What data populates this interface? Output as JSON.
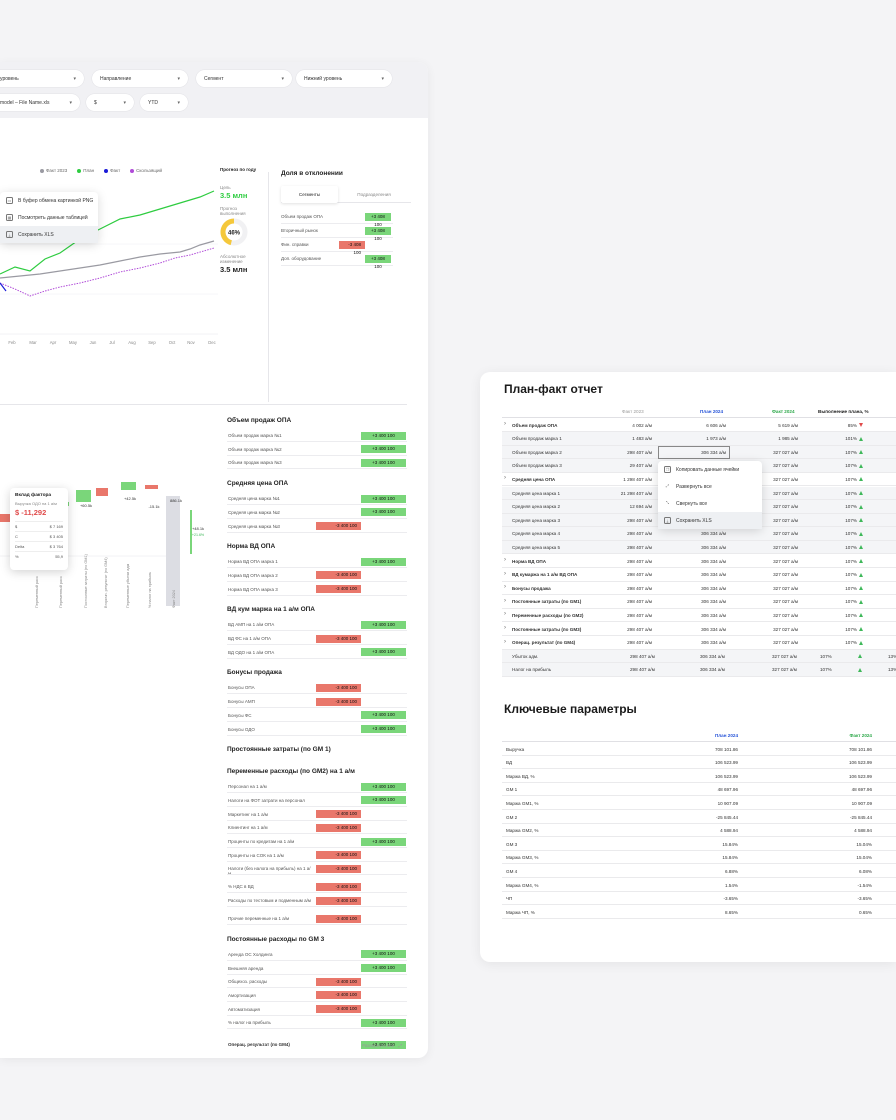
{
  "filters": {
    "row1": [
      "уровень",
      "Направление",
      "Сегмент",
      "Нижний уровень"
    ],
    "row2": [
      "model – File Name.xls",
      "$",
      "YTD"
    ]
  },
  "colors": {
    "green": "#2ecc40",
    "gray": "#9a9aa2",
    "blue": "#1a1ad8",
    "purple": "#b04bd8",
    "pos": "#7ad67a",
    "neg": "#e9776b"
  },
  "legend": [
    "Факт 2023",
    "План",
    "Факт",
    "Скользящий"
  ],
  "context_menu_chart": [
    "В буфер обмена картинкой PNG",
    "Посмотреть данные таблицей",
    "Сохранить XLS"
  ],
  "line_chart": {
    "months": [
      "Feb",
      "Mar",
      "Apr",
      "May",
      "Jun",
      "Jul",
      "Aug",
      "Sep",
      "Oct",
      "Nov",
      "Dec"
    ]
  },
  "forecast": {
    "title": "Прогноз по году",
    "goal_label": "Цель",
    "goal_value": "3.5 млн",
    "forecast_label_1": "Прогноз",
    "forecast_label_2": "выполнения",
    "percent": "46%",
    "percent_value": 46,
    "abs_label_1": "Абсолютное",
    "abs_label_2": "изменение",
    "abs_value": "3.5 млн"
  },
  "deviation": {
    "title": "Доля в отклонении",
    "tabs": [
      "Сегменты",
      "Подразделения"
    ],
    "rows": [
      {
        "label": "Объем продаж ОПА",
        "value": "+3 408 100",
        "sign": "pos"
      },
      {
        "label": "Вторичный рынок",
        "value": "+3 408 100",
        "sign": "pos"
      },
      {
        "label": "Фин. справки",
        "value": "-3 408 100",
        "sign": "neg"
      },
      {
        "label": "Доп. оборудование",
        "value": "+3 408 100",
        "sign": "pos"
      }
    ]
  },
  "waterfall": {
    "values": [
      "-30.0",
      "+41.7k",
      "+4.5k",
      "+60.5k",
      "+42.5k",
      "-15.1k",
      "886.1k",
      "+48.1k"
    ],
    "small_labels": [
      "+21.6%"
    ],
    "tooltip": {
      "title": "Вклад фактора",
      "subtitle": "Выручка ОДО на 1 а/м",
      "value": "$ -11,292",
      "rows": [
        [
          "$",
          "$ 7 169"
        ],
        [
          "С",
          "$ 3 405"
        ],
        [
          "Delta",
          "$ 3 764"
        ],
        [
          "%",
          "55,9"
        ]
      ]
    },
    "x_labels": [
      "Переменный расх",
      "Переменный расх",
      "Постоянные затраты (по GM1)",
      "Вторичн. результат (по GM4)",
      "Переменные убытки адм",
      "% налог на прибыль",
      "Факт 2024"
    ]
  },
  "factors": {
    "sections": [
      {
        "title": "Объем продаж ОПА",
        "rows": [
          [
            "Объем продаж марка №1",
            "+3 400 100",
            "pos"
          ],
          [
            "Объем продаж марка №2",
            "+3 400 100",
            "pos"
          ],
          [
            "Объем продаж марка №3",
            "+3 400 100",
            "pos"
          ]
        ]
      },
      {
        "title": "Средняя цена ОПА",
        "rows": [
          [
            "Средняя цена марка №1",
            "+3 400 100",
            "pos"
          ],
          [
            "Средняя цена марка №2",
            "+3 400 100",
            "pos"
          ],
          [
            "Средняя цена марка №3",
            "-3 400 100",
            "neg"
          ]
        ]
      },
      {
        "title": "Норма ВД ОПА",
        "rows": [
          [
            "Норма ВД ОПА марка 1",
            "+3 400 100",
            "pos"
          ],
          [
            "Норма ВД ОПА марка 2",
            "-3 400 100",
            "neg"
          ],
          [
            "Норма ВД ОПА марка 3",
            "-3 400 100",
            "neg"
          ]
        ]
      },
      {
        "title": "ВД кум маржа на 1 а/м ОПА",
        "rows": [
          [
            "ВД АМП на 1 а/м ОПА",
            "+3 400 100",
            "pos"
          ],
          [
            "ВД ФС на 1 а/м ОПА",
            "-3 400 100",
            "neg"
          ],
          [
            "ВД ОДО на 1 а/м ОПА",
            "+3 400 100",
            "pos"
          ]
        ]
      },
      {
        "title": "Бонусы продажа",
        "rows": [
          [
            "Бонусы ОПА",
            "-3 400 100",
            "neg"
          ],
          [
            "Бонусы АМП",
            "-3 400 100",
            "neg"
          ],
          [
            "Бонусы ФС",
            "+3 400 100",
            "pos"
          ],
          [
            "Бонусы ОДО",
            "+3 400 100",
            "pos"
          ]
        ]
      },
      {
        "title": "Простоянные затраты (по GM 1)",
        "rows": []
      },
      {
        "title": "Переменные расходы (по GM2) на 1 а/м",
        "rows": [
          [
            "Персонал на 1 а/м",
            "+3 400 100",
            "pos"
          ],
          [
            "Налоги на ФОТ затрати на персонал",
            "+3 400 100",
            "pos"
          ],
          [
            "Маркетинг на 1 а/м",
            "-3 400 100",
            "neg"
          ],
          [
            "Клиентинг на 1 а/м",
            "-3 400 100",
            "neg"
          ],
          [
            "Проценты по кредитам на 1 а/м",
            "+3 400 100",
            "pos"
          ],
          [
            "Проценты на СОК на 1 а/м",
            "-3 400 100",
            "neg"
          ],
          [
            "Налоги (без налога на прибыль) на 1 а/м",
            "-3 400 100",
            "neg"
          ],
          [
            "% НДС в ВД",
            "-3 400 100",
            "neg"
          ],
          [
            "Расходы по тестовым и подменным а/м",
            "-3 400 100",
            "neg"
          ],
          [
            "Прочие переменные на 1 а/м",
            "-3 400 100",
            "neg"
          ]
        ]
      },
      {
        "title": "Постоянные расходы по GM 3",
        "rows": [
          [
            "Аренда ОС Холдинга",
            "+3 400 100",
            "pos"
          ],
          [
            "Внешняя аренда",
            "+3 400 100",
            "pos"
          ],
          [
            "Общехоз. расходы",
            "-3 400 100",
            "neg"
          ],
          [
            "Амортизация",
            "-3 400 100",
            "neg"
          ],
          [
            "Автоматизация",
            "-3 400 100",
            "neg"
          ],
          [
            "% налог на прибыль",
            "+3 400 100",
            "pos"
          ]
        ]
      }
    ],
    "bottom_rows": [
      [
        "Операц. результат (по GM4)",
        "+3 400 100",
        "pos"
      ],
      [
        "Убыток адм.",
        "+3 400 100",
        "pos"
      ],
      [
        "Налог на прибыль",
        "-3 400 100",
        "neg"
      ]
    ],
    "expand_all": "Развернуть все"
  },
  "plan_fact": {
    "title": "План-факт отчет",
    "headers": [
      "Факт 2023",
      "План 2024",
      "Факт 2024",
      "Выполнение плана, %"
    ],
    "rows": [
      {
        "label": "Объем продаж ОПА",
        "v": [
          "4 002 а/м",
          "6 606 а/м",
          "5 619 а/м",
          "85%"
        ],
        "tri": "dn",
        "bold": true,
        "arrow": true
      },
      {
        "label": "Объем продаж марка 1",
        "v": [
          "1 483 а/м",
          "1 973 а/м",
          "1 985 а/м",
          "101%"
        ],
        "tri": "up",
        "alt": true
      },
      {
        "label": "Объем продаж марка 2",
        "v": [
          "298 407 а/м",
          "306 334 а/м",
          "327 027 а/м",
          "107%"
        ],
        "tri": "up",
        "alt": true
      },
      {
        "label": "Объем продаж марка 3",
        "v": [
          "29 407 а/м",
          "306 334 а/м",
          "327 027 а/м",
          "107%"
        ],
        "tri": "up",
        "alt": true
      },
      {
        "label": "Средняя цена ОПА",
        "v": [
          "1 298 407 а/м",
          "306 334 а/м",
          "327 027 а/м",
          "107%"
        ],
        "tri": "up",
        "bold": true,
        "arrow": true
      },
      {
        "label": "Средняя цена марка 1",
        "v": [
          "21 298 407 а/м",
          "306 334 а/м",
          "327 027 а/м",
          "107%"
        ],
        "tri": "up",
        "alt": true
      },
      {
        "label": "Средняя цена марка 2",
        "v": [
          "12 694 а/м",
          "306 334 а/м",
          "327 027 а/м",
          "107%"
        ],
        "tri": "up",
        "alt": true
      },
      {
        "label": "Средняя цена марка 3",
        "v": [
          "298 407 а/м",
          "306 334 а/м",
          "327 027 а/м",
          "107%"
        ],
        "tri": "up",
        "alt": true
      },
      {
        "label": "Средняя цена марка 4",
        "v": [
          "298 407 а/м",
          "306 334 а/м",
          "327 027 а/м",
          "107%"
        ],
        "tri": "up",
        "alt": true
      },
      {
        "label": "Средняя цена марка 5",
        "v": [
          "298 407 а/м",
          "306 334 а/м",
          "327 027 а/м",
          "107%"
        ],
        "tri": "up",
        "alt": true
      },
      {
        "label": "Норма ВД ОПА",
        "v": [
          "298 407 а/м",
          "306 334 а/м",
          "327 027 а/м",
          "107%"
        ],
        "tri": "up",
        "bold": true,
        "arrow": true
      },
      {
        "label": "ВД кумаржа на 1 а/м ВД ОПА",
        "v": [
          "298 407 а/м",
          "306 334 а/м",
          "327 027 а/м",
          "107%"
        ],
        "tri": "up",
        "bold": true,
        "arrow": true
      },
      {
        "label": "Бонусы продажа",
        "v": [
          "298 407 а/м",
          "306 334 а/м",
          "327 027 а/м",
          "107%"
        ],
        "tri": "up",
        "bold": true,
        "arrow": true
      },
      {
        "label": "Постоянные затраты (по GM1)",
        "v": [
          "298 407 а/м",
          "306 334 а/м",
          "327 027 а/м",
          "107%"
        ],
        "tri": "up",
        "bold": true,
        "arrow": true
      },
      {
        "label": "Переменные расходы (по GM2)",
        "v": [
          "298 407 а/м",
          "306 334 а/м",
          "327 027 а/м",
          "107%"
        ],
        "tri": "up",
        "bold": true,
        "arrow": true
      },
      {
        "label": "Постоянные затраты (по GM3)",
        "v": [
          "298 407 а/м",
          "306 334 а/м",
          "327 027 а/м",
          "107%"
        ],
        "tri": "up",
        "bold": true,
        "arrow": true
      },
      {
        "label": "Операц. результат (по GM4)",
        "v": [
          "298 407 а/м",
          "306 334 а/м",
          "327 027 а/м",
          "107%"
        ],
        "tri": "up",
        "bold": true,
        "arrow": true
      }
    ],
    "extra_rows": [
      {
        "label": "Убыток адм.",
        "v": [
          "298 407 а/м",
          "306 334 а/м",
          "327 027 а/м",
          "107%",
          "13%"
        ]
      },
      {
        "label": "Налог на прибыль",
        "v": [
          "298 407 а/м",
          "306 334 а/м",
          "327 027 а/м",
          "107%",
          "13%"
        ]
      }
    ],
    "context_menu": [
      "Копировать данные ячейки",
      "Развернуть все",
      "Свернуть все",
      "Сохранить XLS"
    ]
  },
  "key_params": {
    "title": "Ключевые параметры",
    "headers": [
      "План 2024",
      "Факт 2024"
    ],
    "rows": [
      [
        "Выручка",
        "708 101.86",
        "708 101.86"
      ],
      [
        "ВД",
        "106 523.99",
        "106 523.99"
      ],
      [
        "Маржа ВД, %",
        "106 523.99",
        "106 523.99"
      ],
      [
        "GM 1",
        "48 697.96",
        "48 697.96"
      ],
      [
        "Маржа GM1, %",
        "10 907.09",
        "10 907.09"
      ],
      [
        "GM 2",
        "-25 845.44",
        "-25 845.44"
      ],
      [
        "Маржа GM2, %",
        "4 588.94",
        "4 588.94"
      ],
      [
        "GM 3",
        "15.84%",
        "15.04%"
      ],
      [
        "Маржа GM3, %",
        "15.84%",
        "15.04%"
      ],
      [
        "GM 4",
        "6.88%",
        "6.08%"
      ],
      [
        "Маржа GM4, %",
        "1.54%",
        "-1.54%"
      ],
      [
        "ЧП",
        "-3.65%",
        "-3.65%"
      ],
      [
        "Маржа ЧП, %",
        "8.65%",
        "0.65%"
      ]
    ]
  }
}
